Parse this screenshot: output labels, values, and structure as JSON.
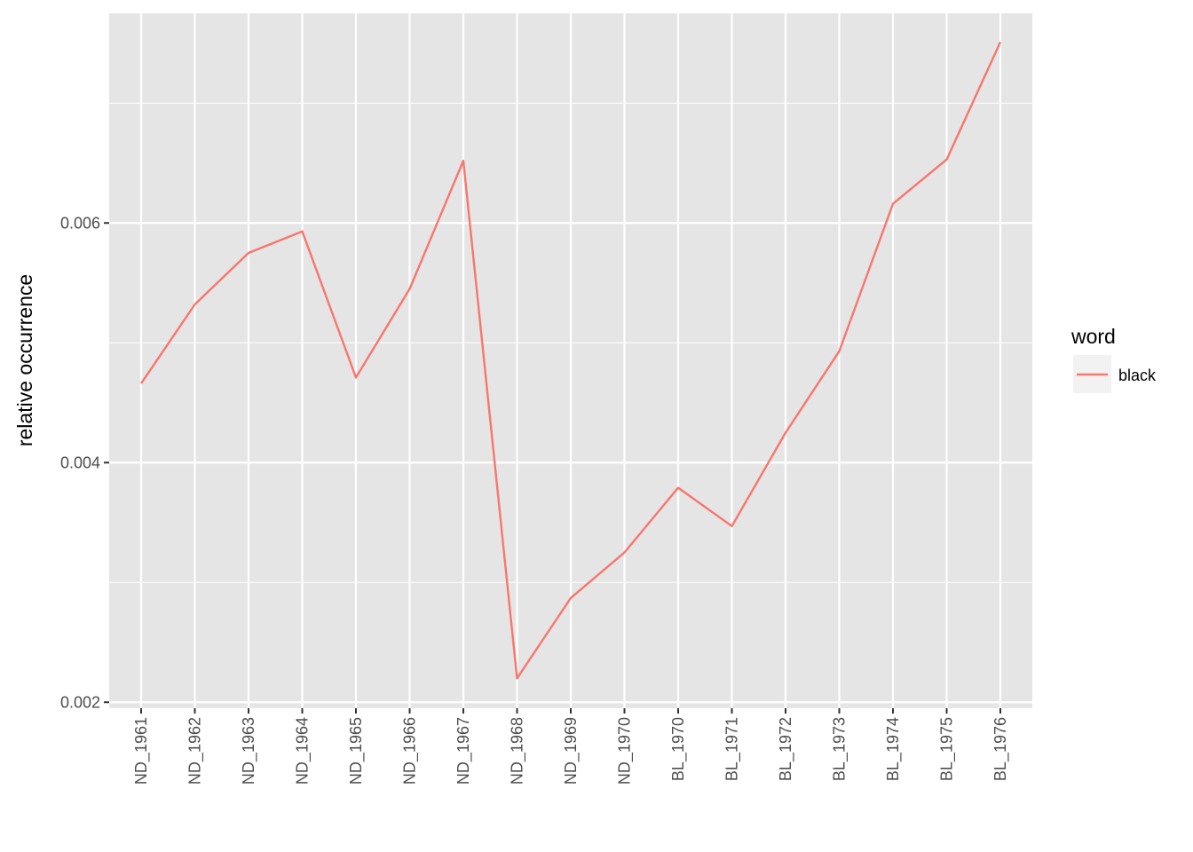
{
  "chart_data": {
    "type": "line",
    "categories": [
      "ND_1961",
      "ND_1962",
      "ND_1963",
      "ND_1964",
      "ND_1965",
      "ND_1966",
      "ND_1967",
      "ND_1968",
      "ND_1969",
      "ND_1970",
      "BL_1970",
      "BL_1971",
      "BL_1972",
      "BL_1973",
      "BL_1974",
      "BL_1975",
      "BL_1976"
    ],
    "series": [
      {
        "name": "black",
        "color": "#F8766D",
        "values": [
          0.00466,
          0.00532,
          0.00575,
          0.00593,
          0.00471,
          0.00545,
          0.00652,
          0.0022,
          0.00287,
          0.00325,
          0.00379,
          0.00347,
          0.00425,
          0.00493,
          0.00616,
          0.00653,
          0.00751
        ]
      }
    ],
    "xlabel": "",
    "ylabel": "relative occurrence",
    "ylim": [
      0.00195,
      0.00775
    ],
    "yticks": [
      0.002,
      0.004,
      0.006
    ],
    "ytick_labels": [
      "0.002",
      "0.004",
      "0.006"
    ],
    "grid": true,
    "legend": {
      "title": "word",
      "position": "right"
    },
    "colors": {
      "panel_bg": "#E5E5E5",
      "grid": "#FFFFFF",
      "legend_key_bg": "#F2F2F2"
    }
  }
}
